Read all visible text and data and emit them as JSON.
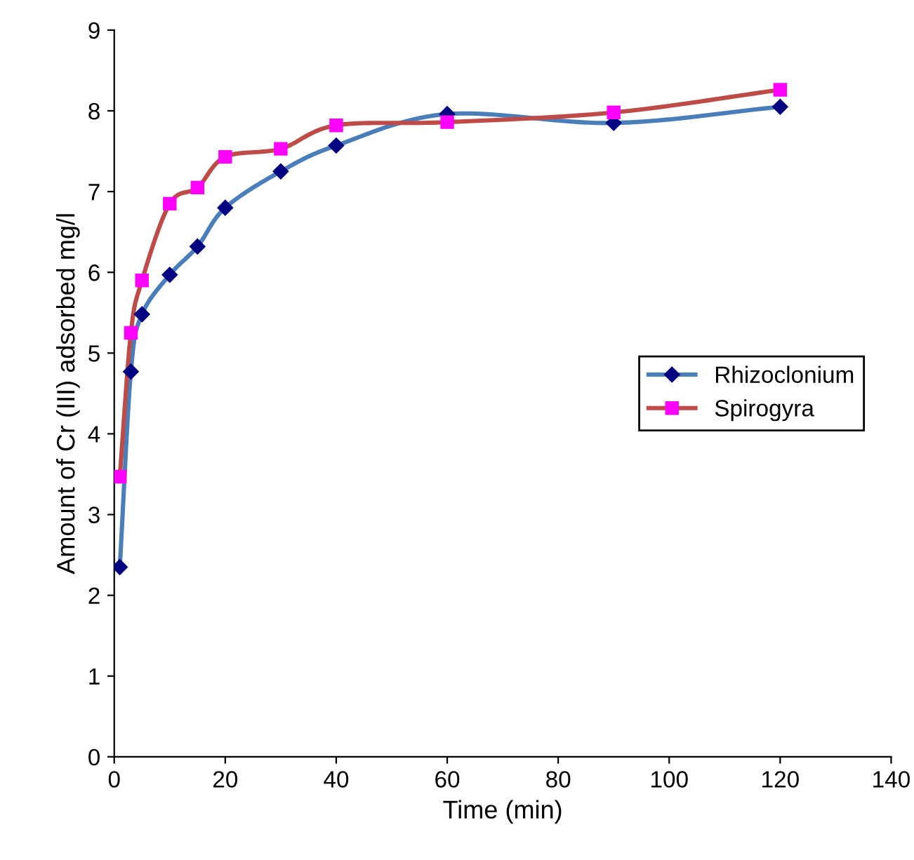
{
  "chart_data": {
    "type": "line",
    "xlabel": "Time (min)",
    "ylabel": "Amount of Cr (III) adsorbed mg/l",
    "xlim": [
      0,
      140
    ],
    "xticks": [
      0,
      20,
      40,
      60,
      80,
      100,
      120,
      140
    ],
    "ylim": [
      0,
      9
    ],
    "yticks": [
      0,
      1,
      2,
      3,
      4,
      5,
      6,
      7,
      8,
      9
    ],
    "grid": false,
    "legend": "right",
    "line_style": "solid",
    "series": [
      {
        "name": "Rhizoclonium",
        "color": "#4a7ebb",
        "marker": "diamond",
        "x": [
          1,
          3,
          5,
          10,
          15,
          20,
          30,
          40,
          60,
          90,
          120
        ],
        "values": [
          2.35,
          4.77,
          5.48,
          5.97,
          6.32,
          6.8,
          7.25,
          7.57,
          7.96,
          7.85,
          8.05
        ]
      },
      {
        "name": "Spirogyra",
        "color": "#be4b48",
        "marker": "square",
        "x": [
          1,
          3,
          5,
          10,
          15,
          20,
          30,
          40,
          60,
          90,
          120
        ],
        "values": [
          3.47,
          5.25,
          5.9,
          6.85,
          7.05,
          7.43,
          7.53,
          7.82,
          7.86,
          7.98,
          8.26
        ]
      }
    ]
  }
}
